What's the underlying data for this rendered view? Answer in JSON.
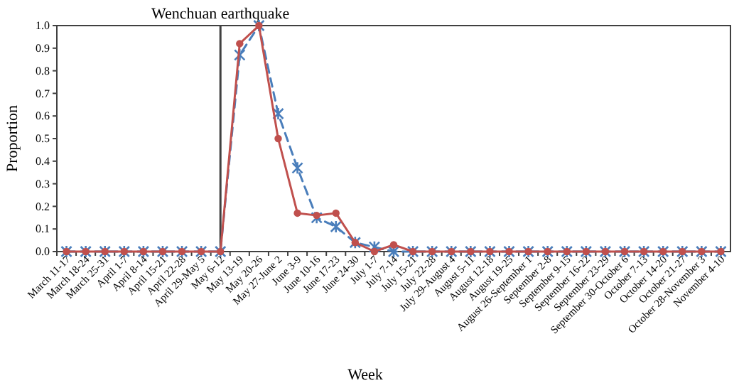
{
  "chart_data": {
    "type": "line",
    "xlabel": "Week",
    "ylabel": "Proportion",
    "categories": [
      "March 11-17",
      "March 18-24",
      "March 25-31",
      "April 1-7",
      "April 8-14",
      "April 15-21",
      "April 22-28",
      "April 29-May 5",
      "May 6-12",
      "May 13-19",
      "May 20-26",
      "May 27-June 2",
      "June 3-9",
      "June 10-16",
      "June 17-23",
      "June 24-30",
      "July 1-7",
      "July 7-14",
      "July 15-21",
      "July 22-28",
      "July 29-August 4",
      "August 5-11",
      "August 12-18",
      "August 19-25",
      "August 26-September 1",
      "September 2-8",
      "September 9-15",
      "September 16-22",
      "September 23-29",
      "September 30-October 6",
      "October 7-13",
      "October 14-20",
      "October 21-27",
      "October 28-November 3",
      "November 4-10"
    ],
    "series": [
      {
        "color": "#4a7ebb",
        "marker": "cross",
        "line_style": "dashed",
        "values": [
          0,
          0,
          0,
          0,
          0,
          0,
          0,
          0,
          0,
          0.87,
          1.0,
          0.61,
          0.37,
          0.15,
          0.11,
          0.04,
          0.02,
          0,
          0,
          0,
          0,
          0,
          0,
          0,
          0,
          0,
          0,
          0,
          0,
          0,
          0,
          0,
          0,
          0,
          0
        ]
      },
      {
        "color": "#c0504d",
        "marker": "circle",
        "line_style": "solid",
        "values": [
          0,
          0,
          0,
          0,
          0,
          0,
          0,
          0,
          0,
          0.92,
          1.0,
          0.5,
          0.17,
          0.16,
          0.17,
          0.04,
          0,
          0.03,
          0,
          0,
          0,
          0,
          0,
          0,
          0,
          0,
          0,
          0,
          0,
          0,
          0,
          0,
          0,
          0,
          0
        ]
      }
    ],
    "ylim": [
      0,
      1
    ],
    "yticks": [
      {
        "value": 0,
        "label": "0.0"
      },
      0.1,
      0.2,
      0.3,
      0.4,
      0.5,
      0.6,
      0.7,
      0.8,
      0.9,
      {
        "value": 1,
        "label": "1.0"
      }
    ],
    "ref_lines": [
      {
        "axis": "x",
        "value": "May 6-12",
        "label": "Wenchuan earthquake",
        "color": "#404040"
      }
    ],
    "grid": false
  }
}
